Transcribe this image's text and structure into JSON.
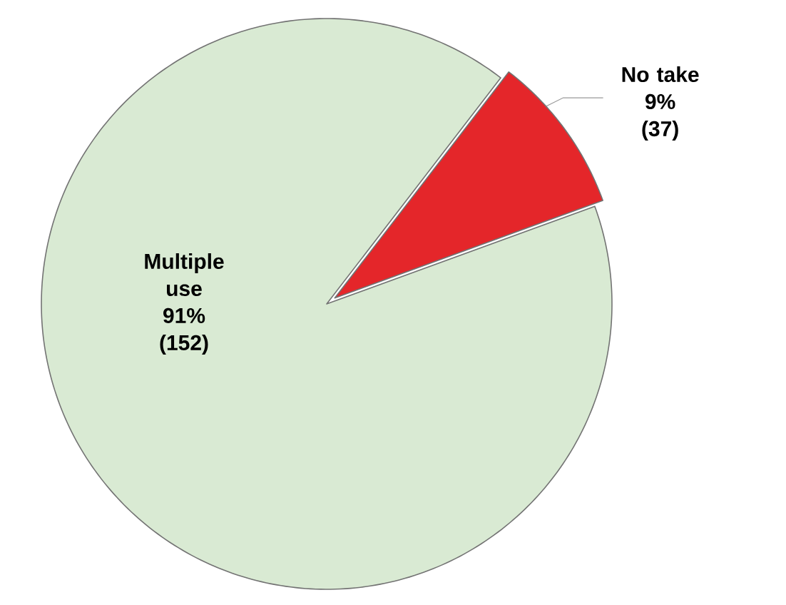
{
  "chart_data": {
    "type": "pie",
    "categories": [
      "Multiple use",
      "No take"
    ],
    "values": [
      91,
      9
    ],
    "value_labels": [
      "91%",
      "9%"
    ],
    "annotations": [
      "(152)",
      "(37)"
    ],
    "colors": [
      "#d9ead3",
      "#e4262a"
    ]
  }
}
